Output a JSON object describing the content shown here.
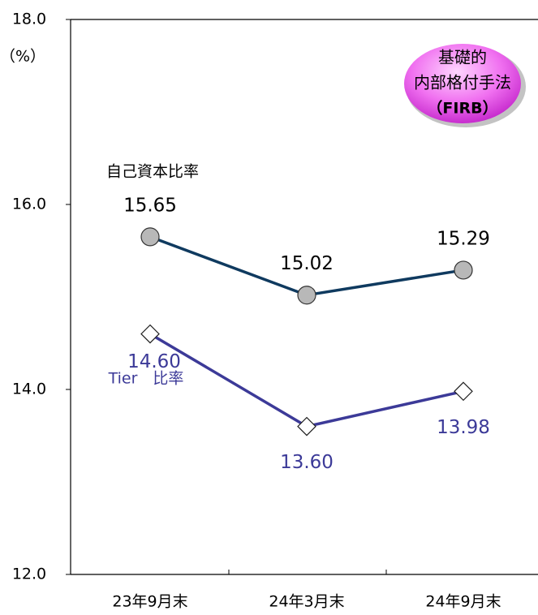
{
  "chart_data": {
    "type": "line",
    "y_label": "（%）",
    "annotation": [
      "基礎的",
      "内部格付手法",
      "（FIRB）"
    ],
    "categories": [
      "23年9月末",
      "24年3月末",
      "24年9月末"
    ],
    "series": [
      {
        "name": "自己資本比率",
        "color": "#0f3a5f",
        "marker": "circle",
        "values": [
          15.65,
          15.02,
          15.29
        ]
      },
      {
        "name": "Tier　比率",
        "color": "#3c3a98",
        "marker": "diamond",
        "values": [
          14.6,
          13.6,
          13.98
        ],
        "value_labels": [
          "14.60",
          "13.60",
          "13.98"
        ]
      }
    ],
    "ylim": [
      12,
      18
    ],
    "yticks": [
      {
        "value": 12,
        "label": "12.0"
      },
      {
        "value": 14,
        "label": "14.0"
      },
      {
        "value": 16,
        "label": "16.0"
      },
      {
        "value": 18,
        "label": "18.0"
      }
    ],
    "grid": false
  }
}
